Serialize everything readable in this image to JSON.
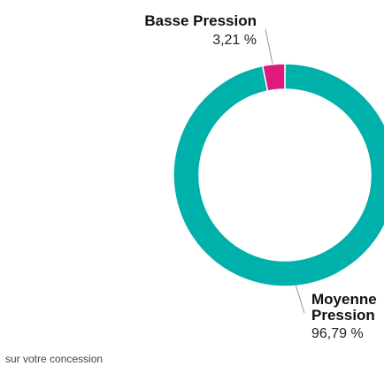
{
  "chart_data": {
    "type": "pie",
    "style": "donut",
    "slices": [
      {
        "name": "Basse Pression",
        "value_label": "3,21 %",
        "value": 3.21,
        "color": "#e0197d"
      },
      {
        "name_lines": [
          "Moyenne",
          "Pression"
        ],
        "value_label": "96,79 %",
        "value": 96.79,
        "color": "#00b0aa"
      }
    ]
  },
  "footnote": "sur votre concession",
  "leader_color": "#9a9a9a"
}
